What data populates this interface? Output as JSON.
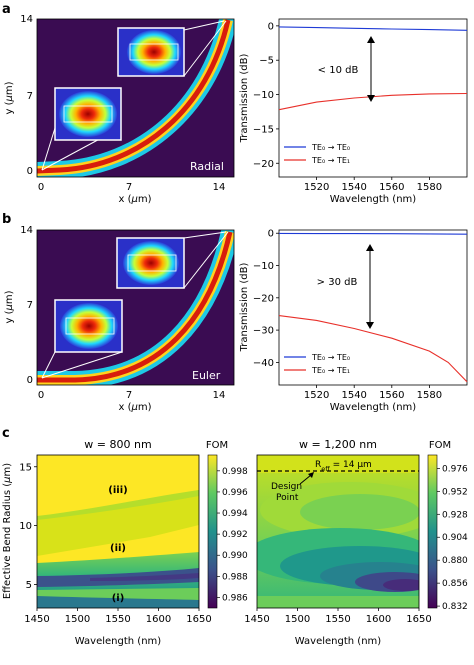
{
  "panels": {
    "a": {
      "label": "a",
      "map": {
        "ytick_labels": [
          "14",
          "7",
          "0"
        ],
        "xtick_labels": [
          "0",
          "7",
          "14"
        ],
        "ylabel_prefix": "y (",
        "ylabel_mu": "μ",
        "ylabel_suffix": "m)",
        "xlabel_prefix": "x (",
        "xlabel_mu": "μ",
        "xlabel_suffix": "m)",
        "mode_label": "Radial"
      }
    },
    "b": {
      "label": "b",
      "map": {
        "ytick_labels": [
          "14",
          "7",
          "0"
        ],
        "xtick_labels": [
          "0",
          "7",
          "14"
        ],
        "ylabel_prefix": "y (",
        "ylabel_mu": "μ",
        "ylabel_suffix": "m)",
        "xlabel_prefix": "x (",
        "xlabel_mu": "μ",
        "xlabel_suffix": "m)",
        "mode_label": "Euler"
      }
    },
    "c": {
      "label": "c",
      "left_title": "w = 800 nm",
      "right_title": "w = 1,200 nm",
      "ylabel_prefix": "Effective Bend Radius (",
      "ylabel_mu": "μ",
      "ylabel_suffix": "m)",
      "xlabel": "Wavelength (nm)",
      "region_labels": [
        "(iii)",
        "(ii)",
        "(i)"
      ],
      "reff_text": "R",
      "reff_sub": "eff",
      "reff_value": " = 14 μm",
      "design_point_line1": "Design",
      "design_point_line2": "Point",
      "cbar_title": "FOM",
      "left_cbar_ticks": [
        "0.998",
        "0.996",
        "0.994",
        "0.992",
        "0.990",
        "0.988",
        "0.986"
      ],
      "right_cbar_ticks": [
        "0.976",
        "0.952",
        "0.928",
        "0.904",
        "0.880",
        "0.856",
        "0.832"
      ]
    }
  },
  "chart_data": [
    {
      "type": "line",
      "panel": "a",
      "xlabel": "Wavelength (nm)",
      "ylabel": "Transmission (dB)",
      "xlim": [
        1500,
        1600
      ],
      "ylim": [
        -22,
        1
      ],
      "xticks": [
        1520,
        1540,
        1560,
        1580
      ],
      "yticks": [
        0,
        -5,
        -10,
        -15,
        -20
      ],
      "legend_position": "bottom-left",
      "annotation": "< 10 dB",
      "series": [
        {
          "name": "TE₀ → TE₀",
          "color": "#1f3bd6",
          "x": [
            1500,
            1520,
            1540,
            1560,
            1580,
            1600
          ],
          "y": [
            -0.15,
            -0.25,
            -0.35,
            -0.45,
            -0.55,
            -0.65
          ]
        },
        {
          "name": "TE₀ → TE₁",
          "color": "#e8302a",
          "x": [
            1500,
            1520,
            1540,
            1560,
            1580,
            1600
          ],
          "y": [
            -12.2,
            -11.1,
            -10.5,
            -10.1,
            -9.9,
            -9.85
          ]
        }
      ]
    },
    {
      "type": "line",
      "panel": "b",
      "xlabel": "Wavelength (nm)",
      "ylabel": "Transmission (dB)",
      "xlim": [
        1500,
        1600
      ],
      "ylim": [
        -47,
        1
      ],
      "xticks": [
        1520,
        1540,
        1560,
        1580
      ],
      "yticks": [
        0,
        -10,
        -20,
        -30,
        -40
      ],
      "legend_position": "bottom-left",
      "annotation": "> 30 dB",
      "series": [
        {
          "name": "TE₀ → TE₀",
          "color": "#1f3bd6",
          "x": [
            1500,
            1520,
            1540,
            1560,
            1580,
            1600
          ],
          "y": [
            -0.05,
            -0.1,
            -0.1,
            -0.15,
            -0.2,
            -0.3
          ]
        },
        {
          "name": "TE₀ → TE₁",
          "color": "#e8302a",
          "x": [
            1500,
            1520,
            1540,
            1560,
            1580,
            1590,
            1600
          ],
          "y": [
            -25.5,
            -27,
            -29.5,
            -32.5,
            -36.5,
            -40,
            -46
          ]
        }
      ]
    },
    {
      "type": "heatmap",
      "panel": "c-left",
      "title": "w = 800 nm",
      "xlabel": "Wavelength (nm)",
      "ylabel": "Effective Bend Radius (μm)",
      "xlim": [
        1450,
        1650
      ],
      "ylim": [
        3,
        16
      ],
      "xticks": [
        1450,
        1500,
        1550,
        1600,
        1650
      ],
      "yticks": [
        5,
        10,
        15
      ],
      "colorbar_label": "FOM",
      "colorbar_range": [
        0.985,
        0.9995
      ],
      "colormap": "viridis"
    },
    {
      "type": "heatmap",
      "panel": "c-right",
      "title": "w = 1,200 nm",
      "xlabel": "Wavelength (nm)",
      "xlim": [
        1450,
        1650
      ],
      "ylim": [
        3,
        16
      ],
      "xticks": [
        1450,
        1500,
        1550,
        1600,
        1650
      ],
      "colorbar_label": "FOM",
      "colorbar_range": [
        0.83,
        0.99
      ],
      "colormap": "viridis",
      "design_point_radius": 14
    }
  ]
}
